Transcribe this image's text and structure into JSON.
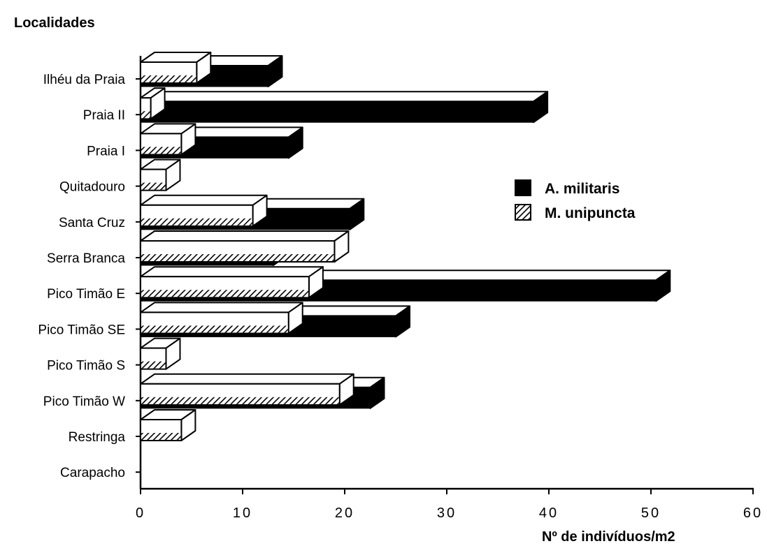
{
  "chart_data": {
    "type": "bar",
    "orientation": "horizontal",
    "style": "3d",
    "ylabel": "Localidades",
    "xlabel": "Nº de indivíduos/m2",
    "xlim": [
      0,
      60
    ],
    "xticks": [
      0,
      10,
      20,
      30,
      40,
      50,
      60
    ],
    "grid": false,
    "legend_position": "right",
    "categories": [
      "Ilhéu da Praia",
      "Praia II",
      "Praia I",
      "Quitadouro",
      "Santa Cruz",
      "Serra Branca",
      "Pico Timão E",
      "Pico Timão SE",
      "Pico Timão S",
      "Pico Timão W",
      "Restringa",
      "Carapacho"
    ],
    "series": [
      {
        "name": "A. militaris",
        "pattern": "solid",
        "color": "#000000",
        "values": [
          12.5,
          38.5,
          14.5,
          0,
          20.5,
          13,
          50.5,
          25,
          0,
          22.5,
          0,
          0
        ]
      },
      {
        "name": "M. unipuncta",
        "pattern": "hatched",
        "color": "#000000",
        "values": [
          5.5,
          1,
          4,
          2.5,
          11,
          19,
          16.5,
          14.5,
          2.5,
          19.5,
          4,
          0
        ]
      }
    ]
  }
}
